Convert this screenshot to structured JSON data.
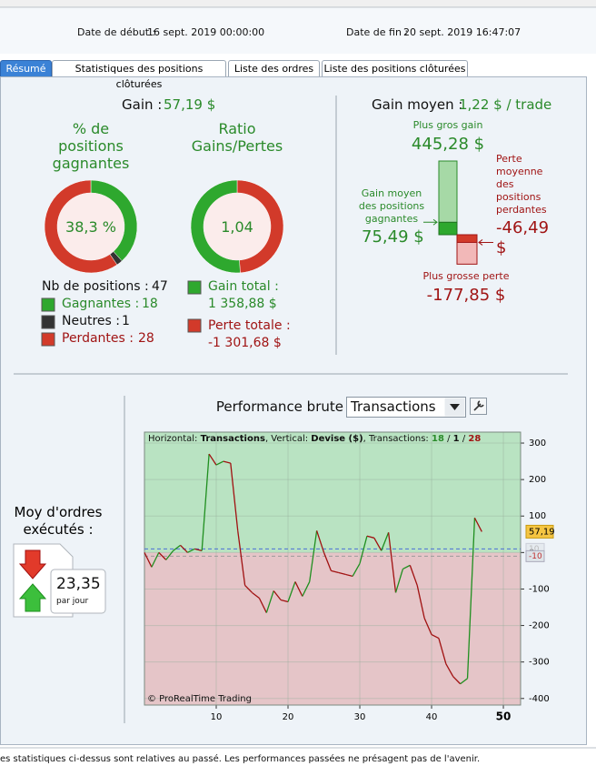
{
  "header": {
    "start_label": "Date de début :",
    "start": "16 sept. 2019 00:00:00",
    "end_label": "Date de fin :",
    "end": "20 sept. 2019 16:47:07"
  },
  "tabs": [
    "Résumé",
    "Statistiques des positions clôturées",
    "Liste des ordres",
    "Liste des positions clôturées"
  ],
  "summary": {
    "gain_label": "Gain :",
    "gain": "57,19 $",
    "win_title": "% de positions gagnantes",
    "win_pct": "38,3 %",
    "ratio_title": "Ratio Gains/Pertes",
    "ratio": "1,04",
    "positions_label": "Nb de positions :",
    "positions": 47,
    "winners_label": "Gagnantes :",
    "winners": 18,
    "neutral_label": "Neutres :",
    "neutral": 1,
    "losers_label": "Perdantes :",
    "losers": 28,
    "gain_total_label": "Gain total :",
    "gain_total": 1358.88,
    "gain_total_text": "1 358,88 $",
    "loss_total_label": "Perte totale :",
    "loss_total": -1301.68,
    "loss_total_text": "-1 301,68 $",
    "colors": {
      "win": "#2ea82e",
      "neutral": "#333333",
      "loss": "#d23a2a"
    }
  },
  "average": {
    "label": "Gain moyen :",
    "value": "1,22 $ / trade",
    "max_gain_label": "Plus gros gain",
    "max_gain": 445.28,
    "max_gain_text": "445,28 $",
    "avg_win_label": "Gain moyen des positions gagnantes",
    "avg_win": 75.49,
    "avg_win_text": "75,49 $",
    "avg_loss_label": "Perte moyenne des positions perdantes",
    "avg_loss": -46.49,
    "avg_loss_text": "-46,49 $",
    "max_loss_label": "Plus grosse perte",
    "max_loss": -177.85,
    "max_loss_text": "-177,85 $"
  },
  "orders": {
    "label": "Moy d'ordres exécutés :",
    "value": "23,35",
    "unit": "par jour"
  },
  "chart_data": {
    "type": "line",
    "title": "Performance brute",
    "selector": "Transactions",
    "info": {
      "h_label": "Horizontal:",
      "h": "Transactions",
      "v_label": ", Vertical:",
      "v": "Devise ($)",
      "t_label": ", Transactions:",
      "sep": "/"
    },
    "copyright": "© ProRealTime Trading",
    "x": [
      0,
      1,
      2,
      3,
      4,
      5,
      6,
      7,
      8,
      9,
      10,
      11,
      12,
      13,
      14,
      15,
      16,
      17,
      18,
      19,
      20,
      21,
      22,
      23,
      24,
      25,
      26,
      27,
      28,
      29,
      30,
      31,
      32,
      33,
      34,
      35,
      36,
      37,
      38,
      39,
      40,
      41,
      42,
      43,
      44,
      45,
      46,
      47
    ],
    "series": [
      {
        "name": "Performance brute",
        "up_color": "#1f8f1f",
        "down_color": "#a01010",
        "values": [
          0,
          -40,
          0,
          -20,
          5,
          20,
          0,
          10,
          5,
          270,
          240,
          250,
          245,
          60,
          -90,
          -110,
          -125,
          -165,
          -105,
          -130,
          -135,
          -80,
          -120,
          -80,
          60,
          0,
          -50,
          -55,
          -60,
          -65,
          -30,
          45,
          40,
          5,
          55,
          -110,
          -45,
          -35,
          -90,
          -180,
          -225,
          -235,
          -305,
          -340,
          -360,
          -345,
          95,
          57.19
        ]
      }
    ],
    "last_value": {
      "value": 57.19,
      "label": "57,19"
    },
    "ref_lines": [
      {
        "value": 10,
        "color": "#4a6fd6"
      },
      {
        "value": -10,
        "color": "#9a9a9a"
      }
    ],
    "xlim": [
      0,
      52.4
    ],
    "ylim": [
      -418,
      330
    ],
    "xticks": [
      10,
      20,
      30,
      40,
      50
    ],
    "yticks": [
      -400,
      -300,
      -200,
      -100,
      0,
      100,
      200,
      300
    ],
    "grid": true,
    "positive_fill": "#b9e3c2",
    "negative_fill": "#e5c5c8"
  },
  "footer": "es statistiques ci-dessus sont relatives au passé. Les performances passées ne présagent pas de l'avenir."
}
